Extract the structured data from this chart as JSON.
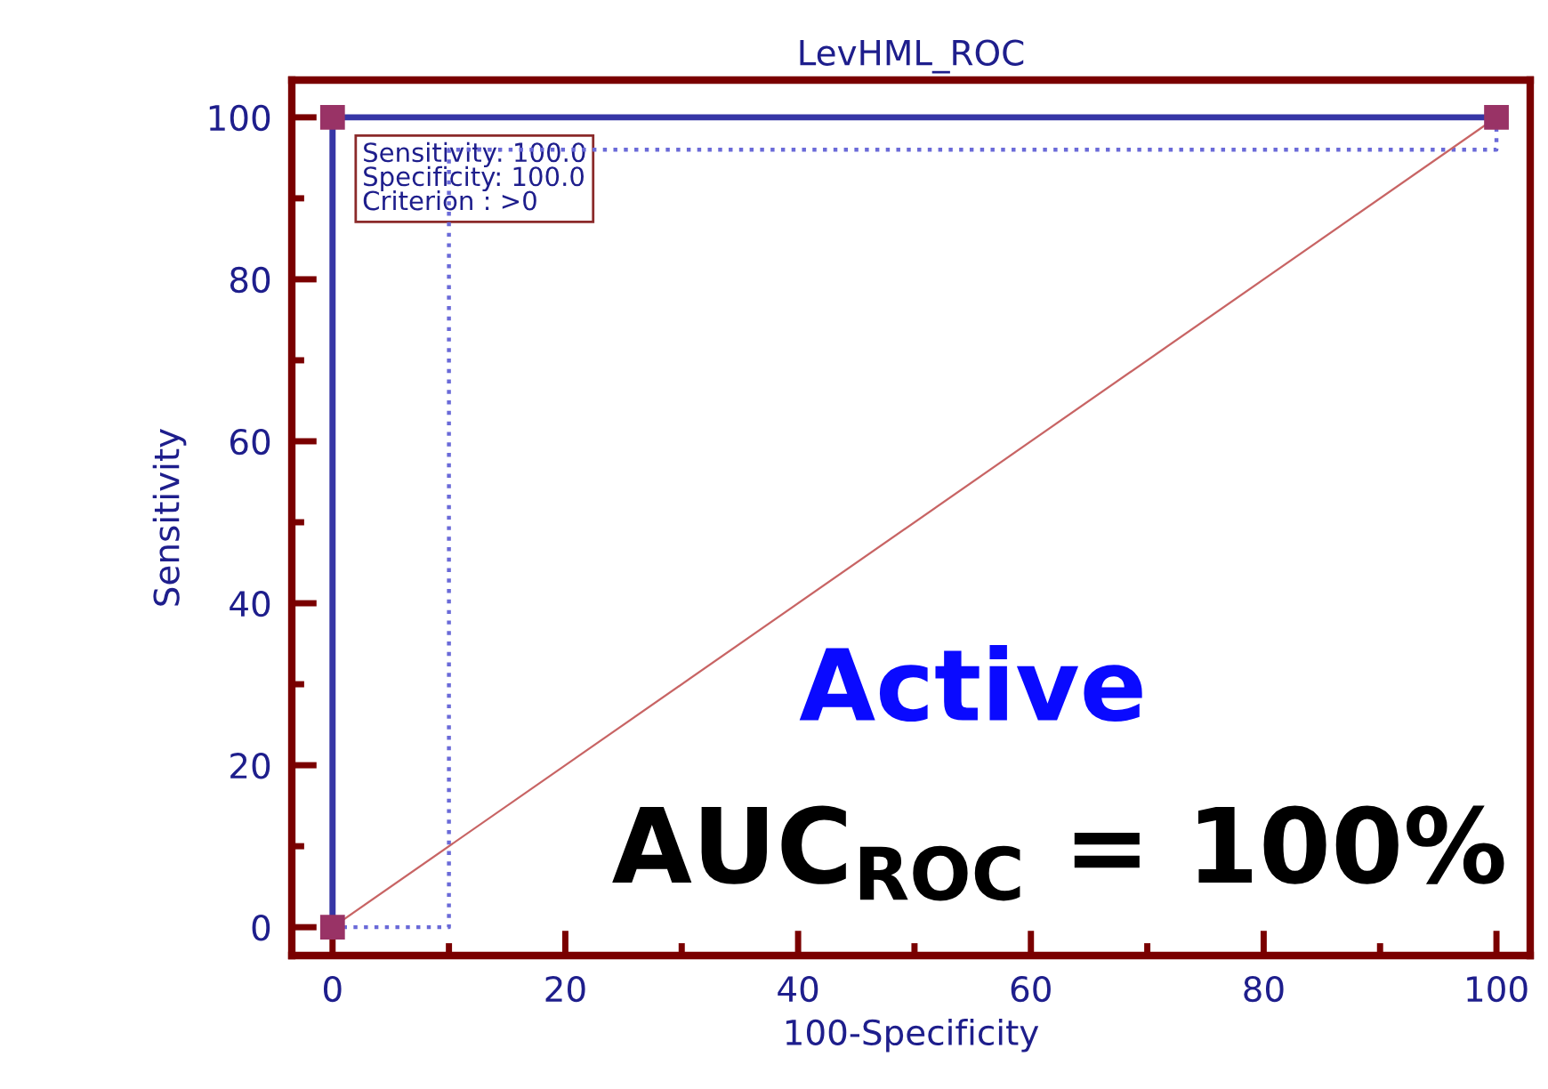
{
  "chart_data": {
    "type": "line",
    "title": "LevHML_ROC",
    "xlabel": "100-Specificity",
    "ylabel": "Sensitivity",
    "xlim": [
      -3.5,
      102.9
    ],
    "ylim": [
      -3.5,
      104.6
    ],
    "xticks": [
      0,
      20,
      40,
      60,
      80,
      100
    ],
    "yticks": [
      0,
      20,
      40,
      60,
      80,
      100
    ],
    "grid": false,
    "legend": false,
    "series": [
      {
        "color": "#3636a6",
        "x": [
          0,
          0,
          100
        ],
        "values": [
          0,
          100,
          100
        ],
        "marker": "square",
        "line_style": "solid"
      },
      {
        "color": "#6a6ad8",
        "x": [
          0,
          10,
          10,
          100,
          100
        ],
        "values": [
          0,
          0,
          96,
          96,
          100
        ],
        "marker": "none",
        "line_style": "dotted"
      },
      {
        "color": "#c86464",
        "x": [
          0,
          100
        ],
        "values": [
          0,
          100
        ],
        "marker": "none",
        "line_style": "solid"
      }
    ],
    "annotations": [
      {
        "text": "Sensitivity: 100.0\nSpecificity: 100.0\nCriterion : >0",
        "x": 0,
        "y": 100
      },
      "Active",
      "AUC$_{ROC}$ = 100%"
    ]
  }
}
